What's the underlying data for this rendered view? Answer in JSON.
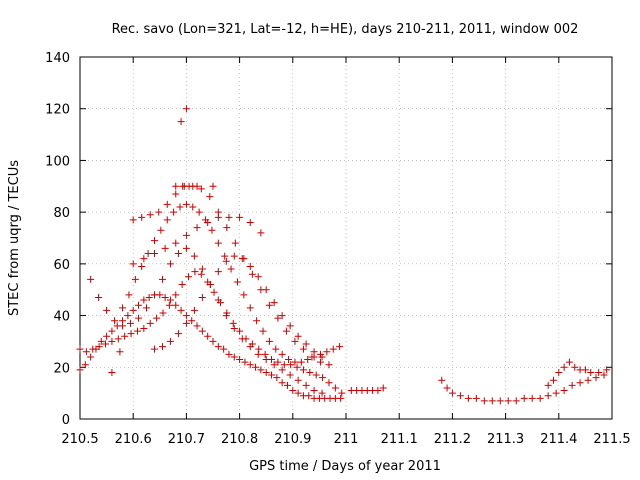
{
  "chart_data": {
    "type": "scatter",
    "title": "Rec. savo (Lon=321, Lat=-12, h=HE), days 210-211, 2011, window 002",
    "xlabel": "GPS time / Days of year 2011",
    "ylabel": "STEC from uqrg / TECUs",
    "xlim": [
      210.5,
      211.5
    ],
    "ylim": [
      0,
      140
    ],
    "xticks": [
      210.5,
      210.6,
      210.7,
      210.8,
      210.9,
      211.0,
      211.1,
      211.2,
      211.3,
      211.4,
      211.5
    ],
    "xtick_labels": [
      "210.5",
      "210.6",
      "210.7",
      "210.8",
      "210.9",
      "211",
      "211.1",
      "211.2",
      "211.3",
      "211.4",
      "211.5"
    ],
    "yticks": [
      0,
      20,
      40,
      60,
      80,
      100,
      120,
      140
    ],
    "ytick_labels": [
      "0",
      "20",
      "40",
      "60",
      "80",
      "100",
      "120",
      "140"
    ],
    "grid": true,
    "marker": "+",
    "color": "#cc0000",
    "series": [
      {
        "name": "STEC",
        "x": [
          210.5,
          210.51,
          210.52,
          210.53,
          210.54,
          210.55,
          210.56,
          210.57,
          210.58,
          210.59,
          210.6,
          210.61,
          210.62,
          210.63,
          210.64,
          210.65,
          210.66,
          210.67,
          210.68,
          210.69,
          210.7,
          210.71,
          210.72,
          210.73,
          210.74,
          210.75,
          210.76,
          210.77,
          210.78,
          210.79,
          210.8,
          210.81,
          210.82,
          210.83,
          210.84,
          210.85,
          210.86,
          210.87,
          210.88,
          210.89,
          210.9,
          210.91,
          210.92,
          210.93,
          210.94,
          210.95,
          210.96,
          210.97,
          210.98,
          210.99,
          210.5,
          210.512,
          210.524,
          210.536,
          210.548,
          210.56,
          210.572,
          210.584,
          210.596,
          210.608,
          210.62,
          210.632,
          210.644,
          210.656,
          210.668,
          210.68,
          210.692,
          210.704,
          210.716,
          210.728,
          210.74,
          210.752,
          210.764,
          210.776,
          210.788,
          210.8,
          210.812,
          210.824,
          210.836,
          210.848,
          210.86,
          210.872,
          210.884,
          210.896,
          210.908,
          210.92,
          210.932,
          210.944,
          210.956,
          210.968,
          210.98,
          210.992,
          210.58,
          210.592,
          210.604,
          210.616,
          210.628,
          210.64,
          210.652,
          210.664,
          210.676,
          210.688,
          210.7,
          210.712,
          210.724,
          210.736,
          210.748,
          210.76,
          210.772,
          210.784,
          210.796,
          210.808,
          210.82,
          210.832,
          210.844,
          210.856,
          210.868,
          210.88,
          210.892,
          210.904,
          210.916,
          210.928,
          210.94,
          210.952,
          210.964,
          210.976,
          210.988,
          210.6,
          210.616,
          210.632,
          210.648,
          210.664,
          210.68,
          210.696,
          210.712,
          210.728,
          210.744,
          210.76,
          210.776,
          210.792,
          210.808,
          210.824,
          210.84,
          210.856,
          210.872,
          210.888,
          210.904,
          210.92,
          210.936,
          210.952,
          210.968,
          210.52,
          210.535,
          210.55,
          210.565,
          210.58,
          210.595,
          210.61,
          210.625,
          210.64,
          210.655,
          210.67,
          210.685,
          210.7,
          210.715,
          210.73,
          210.745,
          210.76,
          210.775,
          210.79,
          210.805,
          210.82,
          210.835,
          210.85,
          210.865,
          210.88,
          210.895,
          210.91,
          210.925,
          210.94,
          210.955,
          210.64,
          210.655,
          210.67,
          210.685,
          210.7,
          210.715,
          210.73,
          210.745,
          210.76,
          210.775,
          210.79,
          210.805,
          210.82,
          210.835,
          210.85,
          210.865,
          210.88,
          210.895,
          210.91,
          210.925,
          210.94,
          210.955,
          210.6,
          210.62,
          210.64,
          210.66,
          210.68,
          210.7,
          210.72,
          210.74,
          210.76,
          210.78,
          210.8,
          210.82,
          210.84,
          210.68,
          210.693,
          210.705,
          210.69,
          210.7,
          210.72,
          210.75,
          210.575,
          210.56,
          211.01,
          211.02,
          211.03,
          211.04,
          211.05,
          211.06,
          211.07,
          211.18,
          211.19,
          211.2,
          211.215,
          211.23,
          211.245,
          211.26,
          211.275,
          211.29,
          211.305,
          211.32,
          211.335,
          211.35,
          211.365,
          211.38,
          211.395,
          211.41,
          211.425,
          211.44,
          211.455,
          211.47,
          211.485,
          211.38,
          211.39,
          211.4,
          211.41,
          211.42,
          211.43,
          211.44,
          211.45,
          211.46,
          211.475,
          211.49
        ],
        "y": [
          19,
          21,
          24,
          27,
          30,
          32,
          34,
          36,
          38,
          40,
          42,
          44,
          46,
          47,
          48,
          48,
          47,
          46,
          44,
          42,
          40,
          38,
          36,
          34,
          32,
          30,
          28,
          27,
          25,
          24,
          23,
          22,
          21,
          20,
          19,
          18,
          17,
          16,
          14,
          13,
          11,
          10,
          9,
          9,
          8,
          8,
          8,
          8,
          8,
          8,
          27,
          26,
          27,
          28,
          29,
          30,
          31,
          32,
          33,
          34,
          35,
          37,
          39,
          41,
          44,
          48,
          52,
          55,
          57,
          56,
          53,
          49,
          45,
          41,
          37,
          34,
          31,
          29,
          27,
          25,
          23,
          22,
          21,
          21,
          20,
          19,
          18,
          17,
          16,
          14,
          12,
          10,
          43,
          48,
          54,
          59,
          64,
          69,
          73,
          77,
          80,
          82,
          83,
          82,
          80,
          77,
          73,
          68,
          63,
          58,
          53,
          48,
          43,
          38,
          34,
          30,
          27,
          25,
          23,
          22,
          22,
          23,
          24,
          25,
          26,
          27,
          28,
          77,
          78,
          79,
          80,
          83,
          87,
          90,
          90,
          89,
          86,
          80,
          74,
          68,
          62,
          56,
          50,
          44,
          39,
          34,
          30,
          27,
          24,
          22,
          21,
          54,
          47,
          42,
          38,
          36,
          37,
          39,
          43,
          48,
          54,
          60,
          64,
          66,
          63,
          58,
          52,
          46,
          40,
          35,
          31,
          28,
          25,
          23,
          21,
          19,
          17,
          15,
          13,
          11,
          10,
          27,
          28,
          30,
          33,
          37,
          42,
          47,
          52,
          57,
          61,
          63,
          62,
          59,
          55,
          50,
          45,
          40,
          36,
          32,
          29,
          26,
          24,
          60,
          62,
          64,
          66,
          68,
          71,
          74,
          76,
          78,
          78,
          78,
          76,
          72,
          90,
          90,
          90,
          115,
          120,
          90,
          90,
          26,
          18,
          11,
          11,
          11,
          11,
          11,
          11,
          12,
          15,
          12,
          10,
          9,
          8,
          8,
          7,
          7,
          7,
          7,
          7,
          8,
          8,
          8,
          9,
          10,
          11,
          13,
          14,
          15,
          16,
          17,
          13,
          15,
          18,
          20,
          22,
          20,
          19,
          19,
          18,
          18,
          19
        ]
      }
    ]
  }
}
